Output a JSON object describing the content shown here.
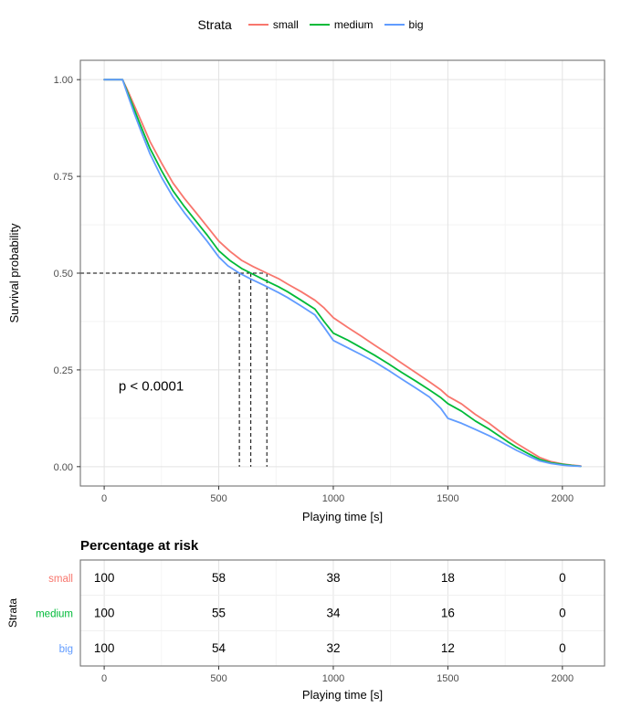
{
  "legend": {
    "title": "Strata",
    "items": [
      {
        "label": "small",
        "color": "#F8766D"
      },
      {
        "label": "medium",
        "color": "#00BA38"
      },
      {
        "label": "big",
        "color": "#619CFF"
      }
    ]
  },
  "chart_data": {
    "type": "line",
    "subtype": "kaplan-meier-survival",
    "title": "",
    "xlabel": "Playing time [s]",
    "ylabel": "Survival probability",
    "xlim": [
      0,
      2080
    ],
    "ylim": [
      0,
      1
    ],
    "x_ticks": [
      0,
      500,
      1000,
      1500,
      2000
    ],
    "x_minor_ticks": [
      250,
      750,
      1250,
      1750
    ],
    "y_ticks": [
      0,
      0.25,
      0.5,
      0.75,
      1.0
    ],
    "y_tick_labels": [
      "0.00",
      "0.25",
      "0.50",
      "0.75",
      "1.00"
    ],
    "y_minor_ticks": [
      0.125,
      0.375,
      0.625,
      0.875
    ],
    "grid": true,
    "legend_position": "top",
    "legend_title": "Strata",
    "annotation": {
      "text": "p < 0.0001",
      "x": 205,
      "y": 0.197
    },
    "median_guides": {
      "survival": 0.5,
      "times": [
        590,
        640,
        710
      ]
    },
    "series": [
      {
        "name": "small",
        "color": "#F8766D",
        "points": [
          [
            0,
            1
          ],
          [
            80,
            1
          ],
          [
            100,
            0.975
          ],
          [
            130,
            0.935
          ],
          [
            160,
            0.895
          ],
          [
            200,
            0.84
          ],
          [
            250,
            0.785
          ],
          [
            300,
            0.733
          ],
          [
            350,
            0.693
          ],
          [
            400,
            0.657
          ],
          [
            450,
            0.62
          ],
          [
            500,
            0.583
          ],
          [
            550,
            0.556
          ],
          [
            600,
            0.533
          ],
          [
            650,
            0.517
          ],
          [
            710,
            0.5
          ],
          [
            760,
            0.486
          ],
          [
            800,
            0.472
          ],
          [
            860,
            0.452
          ],
          [
            920,
            0.43
          ],
          [
            960,
            0.41
          ],
          [
            1000,
            0.385
          ],
          [
            1060,
            0.361
          ],
          [
            1120,
            0.338
          ],
          [
            1180,
            0.314
          ],
          [
            1240,
            0.291
          ],
          [
            1300,
            0.267
          ],
          [
            1360,
            0.243
          ],
          [
            1420,
            0.219
          ],
          [
            1470,
            0.198
          ],
          [
            1500,
            0.182
          ],
          [
            1560,
            0.162
          ],
          [
            1620,
            0.135
          ],
          [
            1680,
            0.112
          ],
          [
            1720,
            0.094
          ],
          [
            1760,
            0.076
          ],
          [
            1800,
            0.06
          ],
          [
            1850,
            0.042
          ],
          [
            1900,
            0.024
          ],
          [
            1950,
            0.013
          ],
          [
            2000,
            0.007
          ],
          [
            2040,
            0.004
          ],
          [
            2080,
            0.002
          ]
        ]
      },
      {
        "name": "medium",
        "color": "#00BA38",
        "points": [
          [
            0,
            1
          ],
          [
            80,
            1
          ],
          [
            100,
            0.97
          ],
          [
            130,
            0.925
          ],
          [
            160,
            0.88
          ],
          [
            200,
            0.822
          ],
          [
            250,
            0.765
          ],
          [
            300,
            0.713
          ],
          [
            350,
            0.672
          ],
          [
            400,
            0.635
          ],
          [
            450,
            0.598
          ],
          [
            500,
            0.558
          ],
          [
            550,
            0.532
          ],
          [
            600,
            0.512
          ],
          [
            640,
            0.5
          ],
          [
            700,
            0.482
          ],
          [
            760,
            0.465
          ],
          [
            800,
            0.452
          ],
          [
            860,
            0.43
          ],
          [
            920,
            0.407
          ],
          [
            960,
            0.375
          ],
          [
            1000,
            0.345
          ],
          [
            1060,
            0.328
          ],
          [
            1120,
            0.308
          ],
          [
            1180,
            0.288
          ],
          [
            1240,
            0.266
          ],
          [
            1300,
            0.243
          ],
          [
            1360,
            0.221
          ],
          [
            1420,
            0.198
          ],
          [
            1470,
            0.178
          ],
          [
            1500,
            0.163
          ],
          [
            1560,
            0.143
          ],
          [
            1620,
            0.118
          ],
          [
            1680,
            0.097
          ],
          [
            1720,
            0.081
          ],
          [
            1760,
            0.065
          ],
          [
            1800,
            0.05
          ],
          [
            1850,
            0.034
          ],
          [
            1900,
            0.019
          ],
          [
            1950,
            0.01
          ],
          [
            2000,
            0.006
          ],
          [
            2040,
            0.003
          ],
          [
            2080,
            0.001
          ]
        ]
      },
      {
        "name": "big",
        "color": "#619CFF",
        "points": [
          [
            0,
            1
          ],
          [
            80,
            1
          ],
          [
            100,
            0.965
          ],
          [
            130,
            0.915
          ],
          [
            160,
            0.868
          ],
          [
            200,
            0.808
          ],
          [
            250,
            0.748
          ],
          [
            300,
            0.697
          ],
          [
            350,
            0.656
          ],
          [
            400,
            0.619
          ],
          [
            450,
            0.582
          ],
          [
            500,
            0.542
          ],
          [
            540,
            0.519
          ],
          [
            590,
            0.5
          ],
          [
            640,
            0.485
          ],
          [
            700,
            0.468
          ],
          [
            760,
            0.45
          ],
          [
            800,
            0.437
          ],
          [
            860,
            0.415
          ],
          [
            920,
            0.392
          ],
          [
            960,
            0.36
          ],
          [
            1000,
            0.326
          ],
          [
            1060,
            0.308
          ],
          [
            1120,
            0.29
          ],
          [
            1180,
            0.271
          ],
          [
            1240,
            0.249
          ],
          [
            1300,
            0.226
          ],
          [
            1360,
            0.203
          ],
          [
            1420,
            0.18
          ],
          [
            1470,
            0.15
          ],
          [
            1500,
            0.125
          ],
          [
            1560,
            0.112
          ],
          [
            1620,
            0.096
          ],
          [
            1680,
            0.08
          ],
          [
            1720,
            0.068
          ],
          [
            1760,
            0.055
          ],
          [
            1800,
            0.042
          ],
          [
            1850,
            0.028
          ],
          [
            1900,
            0.015
          ],
          [
            1950,
            0.008
          ],
          [
            2000,
            0.004
          ],
          [
            2040,
            0.002
          ],
          [
            2080,
            0.001
          ]
        ]
      }
    ],
    "risk_table": {
      "title": "Percentage at risk",
      "ylabel": "Strata",
      "xlabel": "Playing time [s]",
      "times": [
        0,
        500,
        1000,
        1500,
        2000
      ],
      "minor_times": [
        250,
        750,
        1250,
        1750
      ],
      "rows": [
        {
          "name": "small",
          "color": "#F8766D",
          "values": [
            100,
            58,
            38,
            18,
            0
          ]
        },
        {
          "name": "medium",
          "color": "#00BA38",
          "values": [
            100,
            55,
            34,
            16,
            0
          ]
        },
        {
          "name": "big",
          "color": "#619CFF",
          "values": [
            100,
            54,
            32,
            12,
            0
          ]
        }
      ]
    },
    "colors": {
      "small": "#F8766D",
      "medium": "#00BA38",
      "big": "#619CFF"
    }
  }
}
